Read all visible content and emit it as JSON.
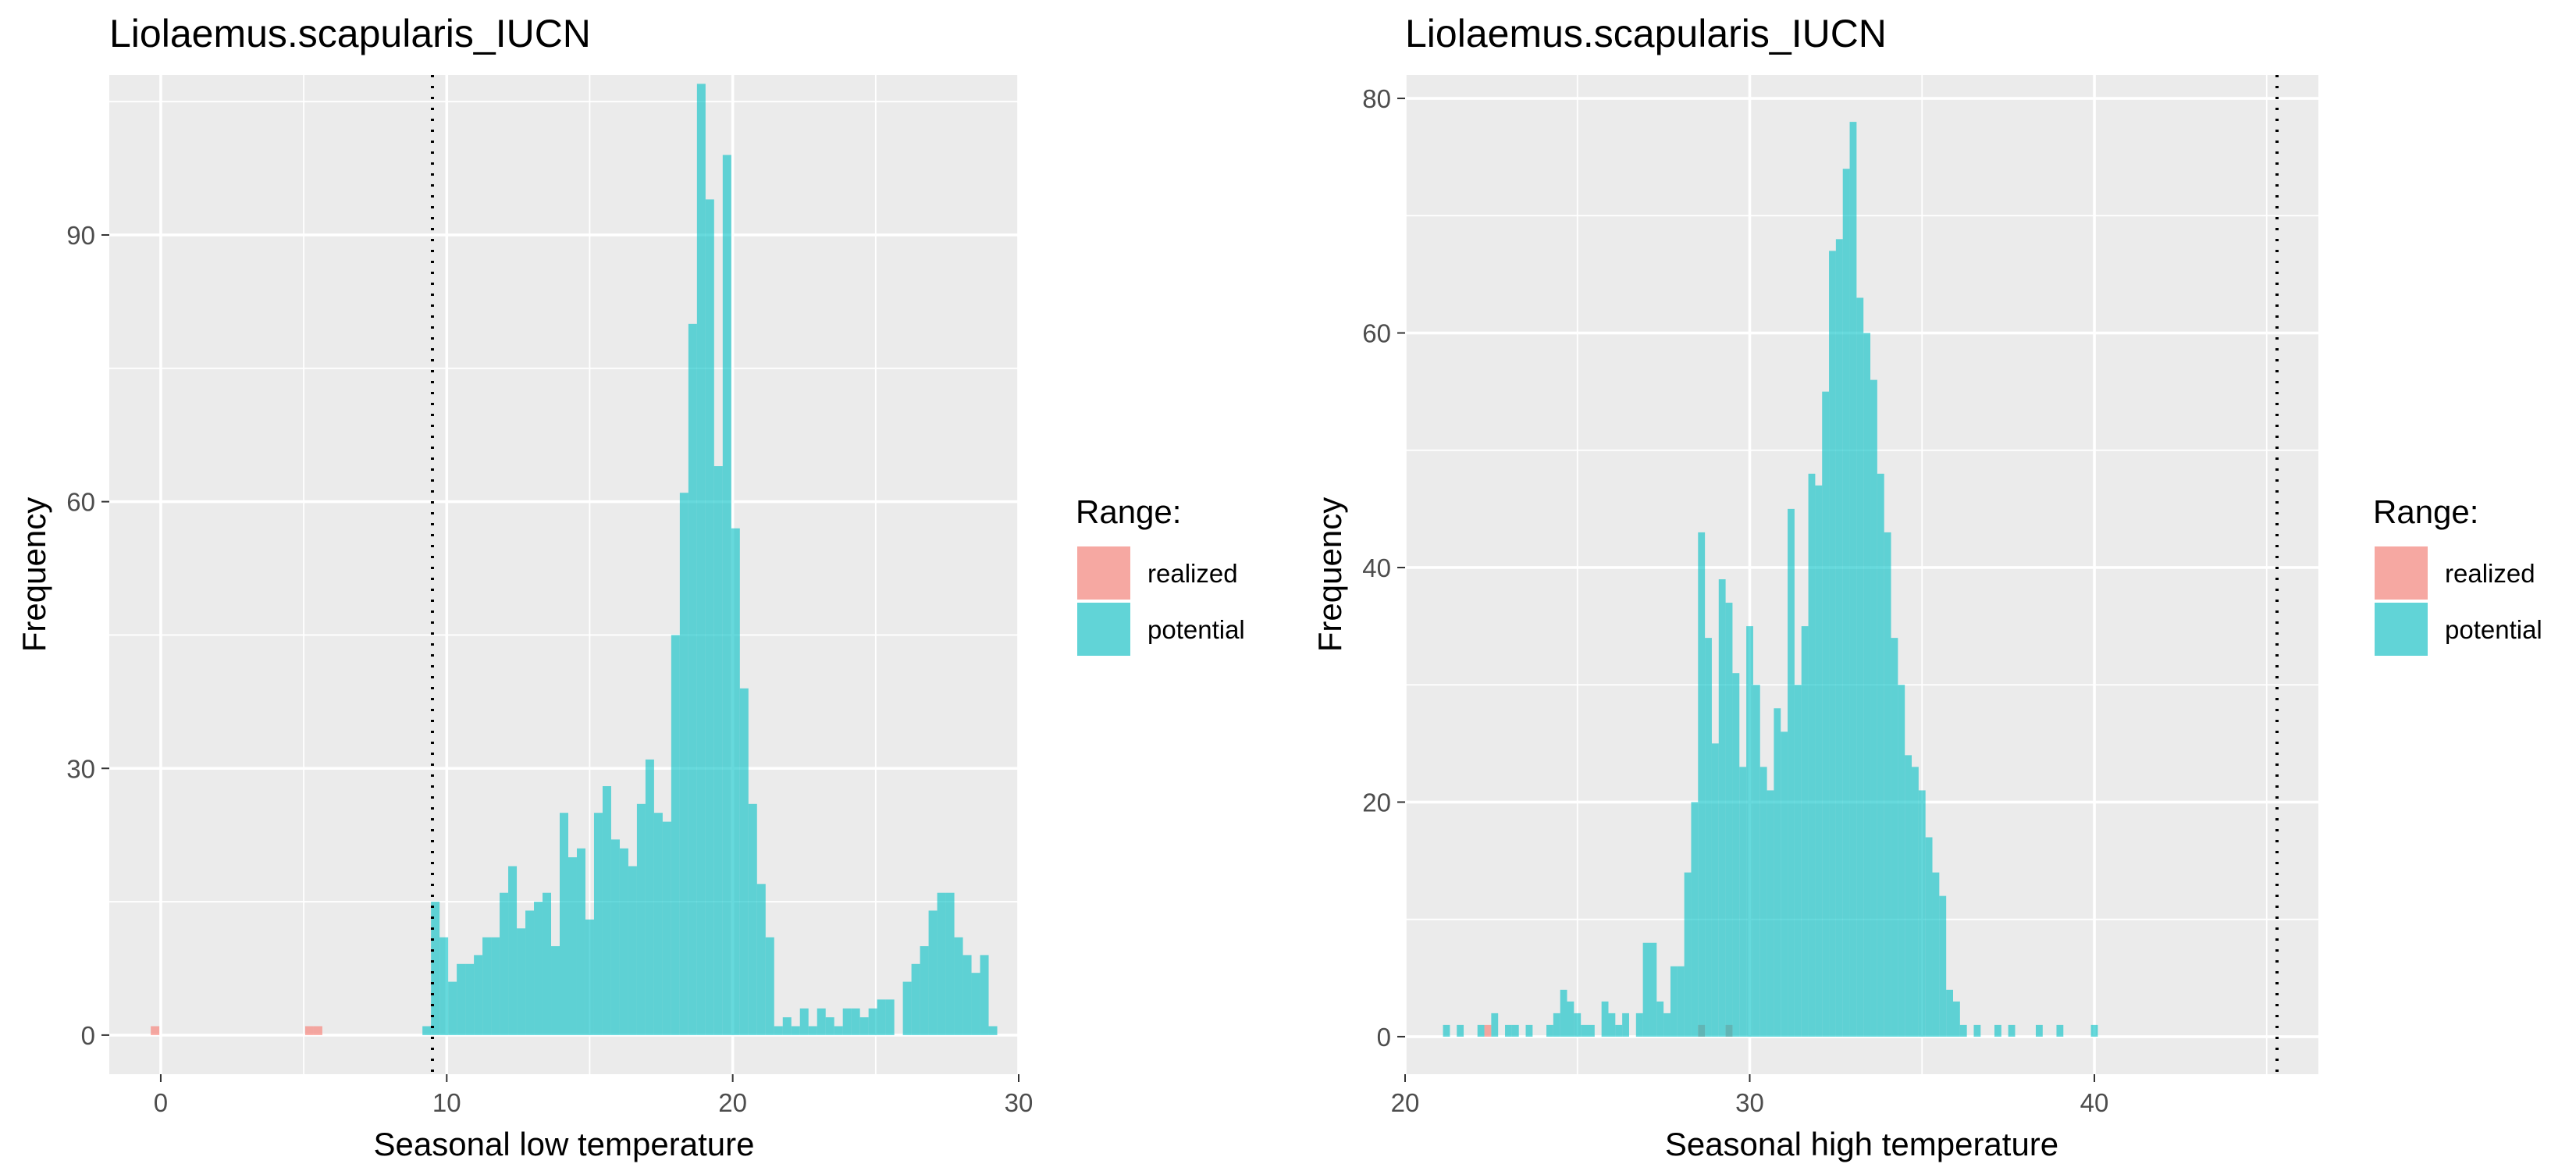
{
  "chart_data": [
    {
      "type": "bar",
      "title": "Liolaemus.scapularis_IUCN",
      "xlabel": "Seasonal low temperature",
      "ylabel": "Frequency",
      "xlim": [
        -1.8,
        30
      ],
      "ylim": [
        -4.4,
        108
      ],
      "x_ticks": [
        0,
        10,
        20,
        30
      ],
      "x_tick_labels": [
        "0",
        "10",
        "20",
        "30"
      ],
      "y_ticks": [
        0,
        30,
        60,
        90
      ],
      "y_tick_labels": [
        "0",
        "30",
        "60",
        "90"
      ],
      "bin_width": 0.3,
      "reference_line_x": 9.5,
      "grid": true,
      "legend": {
        "title": "Range:",
        "position": "right",
        "entries": [
          "realized",
          "potential"
        ]
      },
      "colors": {
        "realized": "#F8766D",
        "potential": "#00BFC4",
        "panel": "#EBEBEB",
        "grid": "#FFFFFF"
      },
      "series": [
        {
          "name": "realized",
          "points": [
            [
              -0.2,
              1
            ],
            [
              5.2,
              1
            ],
            [
              5.5,
              1
            ]
          ]
        },
        {
          "name": "potential",
          "points": [
            [
              9.3,
              1
            ],
            [
              9.6,
              15
            ],
            [
              9.9,
              11
            ],
            [
              10.2,
              6
            ],
            [
              10.5,
              8
            ],
            [
              10.8,
              8
            ],
            [
              11.1,
              9
            ],
            [
              11.4,
              11
            ],
            [
              11.7,
              11
            ],
            [
              12.0,
              16
            ],
            [
              12.3,
              19
            ],
            [
              12.6,
              12
            ],
            [
              12.9,
              14
            ],
            [
              13.2,
              15
            ],
            [
              13.5,
              16
            ],
            [
              13.8,
              10
            ],
            [
              14.1,
              25
            ],
            [
              14.4,
              20
            ],
            [
              14.7,
              21
            ],
            [
              15.0,
              13
            ],
            [
              15.3,
              25
            ],
            [
              15.6,
              28
            ],
            [
              15.9,
              22
            ],
            [
              16.2,
              21
            ],
            [
              16.5,
              19
            ],
            [
              16.8,
              26
            ],
            [
              17.1,
              31
            ],
            [
              17.4,
              25
            ],
            [
              17.7,
              24
            ],
            [
              18.0,
              45
            ],
            [
              18.3,
              61
            ],
            [
              18.6,
              80
            ],
            [
              18.9,
              107
            ],
            [
              19.2,
              94
            ],
            [
              19.5,
              64
            ],
            [
              19.8,
              99
            ],
            [
              20.1,
              57
            ],
            [
              20.4,
              39
            ],
            [
              20.7,
              26
            ],
            [
              21.0,
              17
            ],
            [
              21.3,
              11
            ],
            [
              21.6,
              1
            ],
            [
              21.9,
              2
            ],
            [
              22.2,
              1
            ],
            [
              22.5,
              3
            ],
            [
              22.8,
              1
            ],
            [
              23.1,
              3
            ],
            [
              23.4,
              2
            ],
            [
              23.7,
              1
            ],
            [
              24.0,
              3
            ],
            [
              24.3,
              3
            ],
            [
              24.6,
              2
            ],
            [
              24.9,
              3
            ],
            [
              25.2,
              4
            ],
            [
              25.5,
              4
            ],
            [
              26.1,
              6
            ],
            [
              26.4,
              8
            ],
            [
              26.7,
              10
            ],
            [
              27.0,
              14
            ],
            [
              27.3,
              16
            ],
            [
              27.6,
              16
            ],
            [
              27.9,
              11
            ],
            [
              28.2,
              9
            ],
            [
              28.5,
              7
            ],
            [
              28.8,
              9
            ],
            [
              29.1,
              1
            ]
          ]
        }
      ]
    },
    {
      "type": "bar",
      "title": "Liolaemus.scapularis_IUCN",
      "xlabel": "Seasonal high temperature",
      "ylabel": "Frequency",
      "xlim": [
        20,
        46.5
      ],
      "ylim": [
        -3.2,
        82
      ],
      "x_ticks": [
        20,
        30,
        40
      ],
      "x_tick_labels": [
        "20",
        "30",
        "40"
      ],
      "y_ticks": [
        0,
        20,
        40,
        60,
        80
      ],
      "y_tick_labels": [
        "0",
        "20",
        "40",
        "60",
        "80"
      ],
      "bin_width": 0.2,
      "reference_line_x": 45.3,
      "grid": true,
      "legend": {
        "title": "Range:",
        "position": "right",
        "entries": [
          "realized",
          "potential"
        ]
      },
      "colors": {
        "realized": "#F8766D",
        "potential": "#00BFC4",
        "panel": "#EBEBEB",
        "grid": "#FFFFFF"
      },
      "series": [
        {
          "name": "realized",
          "points": [
            [
              22.4,
              1
            ],
            [
              28.6,
              1
            ],
            [
              29.4,
              1
            ]
          ]
        },
        {
          "name": "potential",
          "points": [
            [
              21.2,
              1
            ],
            [
              21.6,
              1
            ],
            [
              22.2,
              1
            ],
            [
              22.6,
              2
            ],
            [
              23.0,
              1
            ],
            [
              23.2,
              1
            ],
            [
              23.6,
              1
            ],
            [
              24.2,
              1
            ],
            [
              24.4,
              2
            ],
            [
              24.6,
              4
            ],
            [
              24.8,
              3
            ],
            [
              25.0,
              2
            ],
            [
              25.2,
              1
            ],
            [
              25.4,
              1
            ],
            [
              25.8,
              3
            ],
            [
              26.0,
              2
            ],
            [
              26.2,
              1
            ],
            [
              26.4,
              2
            ],
            [
              26.8,
              2
            ],
            [
              27.0,
              8
            ],
            [
              27.2,
              8
            ],
            [
              27.4,
              3
            ],
            [
              27.6,
              2
            ],
            [
              27.8,
              6
            ],
            [
              28.0,
              6
            ],
            [
              28.2,
              14
            ],
            [
              28.4,
              20
            ],
            [
              28.6,
              43
            ],
            [
              28.8,
              34
            ],
            [
              29.0,
              25
            ],
            [
              29.2,
              39
            ],
            [
              29.4,
              37
            ],
            [
              29.6,
              31
            ],
            [
              29.8,
              23
            ],
            [
              30.0,
              35
            ],
            [
              30.2,
              30
            ],
            [
              30.4,
              23
            ],
            [
              30.6,
              21
            ],
            [
              30.8,
              28
            ],
            [
              31.0,
              26
            ],
            [
              31.2,
              45
            ],
            [
              31.4,
              30
            ],
            [
              31.6,
              35
            ],
            [
              31.8,
              48
            ],
            [
              32.0,
              47
            ],
            [
              32.2,
              55
            ],
            [
              32.4,
              67
            ],
            [
              32.6,
              68
            ],
            [
              32.8,
              74
            ],
            [
              33.0,
              78
            ],
            [
              33.2,
              63
            ],
            [
              33.4,
              60
            ],
            [
              33.6,
              56
            ],
            [
              33.8,
              48
            ],
            [
              34.0,
              43
            ],
            [
              34.2,
              34
            ],
            [
              34.4,
              30
            ],
            [
              34.6,
              24
            ],
            [
              34.8,
              23
            ],
            [
              35.0,
              21
            ],
            [
              35.2,
              17
            ],
            [
              35.4,
              14
            ],
            [
              35.6,
              12
            ],
            [
              35.8,
              4
            ],
            [
              36.0,
              3
            ],
            [
              36.2,
              1
            ],
            [
              36.6,
              1
            ],
            [
              37.2,
              1
            ],
            [
              37.6,
              1
            ],
            [
              38.4,
              1
            ],
            [
              39.0,
              1
            ],
            [
              40.0,
              1
            ]
          ]
        }
      ]
    }
  ]
}
